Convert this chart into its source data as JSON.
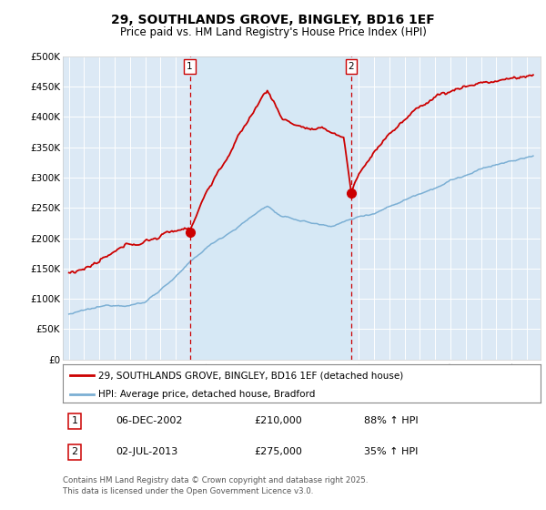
{
  "title": "29, SOUTHLANDS GROVE, BINGLEY, BD16 1EF",
  "subtitle": "Price paid vs. HM Land Registry's House Price Index (HPI)",
  "ylim": [
    0,
    500000
  ],
  "yticks": [
    0,
    50000,
    100000,
    150000,
    200000,
    250000,
    300000,
    350000,
    400000,
    450000,
    500000
  ],
  "ytick_labels": [
    "£0",
    "£50K",
    "£100K",
    "£150K",
    "£200K",
    "£250K",
    "£300K",
    "£350K",
    "£400K",
    "£450K",
    "£500K"
  ],
  "hpi_color": "#7bafd4",
  "price_color": "#cc0000",
  "vline_color": "#cc0000",
  "shade_color": "#d6e8f5",
  "plot_bg_color": "#dce9f5",
  "legend_label_price": "29, SOUTHLANDS GROVE, BINGLEY, BD16 1EF (detached house)",
  "legend_label_hpi": "HPI: Average price, detached house, Bradford",
  "sale1_date": "06-DEC-2002",
  "sale1_price": 210000,
  "sale1_hpi": "88% ↑ HPI",
  "sale2_date": "02-JUL-2013",
  "sale2_price": 275000,
  "sale2_hpi": "35% ↑ HPI",
  "footer": "Contains HM Land Registry data © Crown copyright and database right 2025.\nThis data is licensed under the Open Government Licence v3.0.",
  "sale1_x": 2002.92,
  "sale2_x": 2013.5,
  "marker1_y": 210000,
  "marker2_y": 275000,
  "xlim_left": 1994.6,
  "xlim_right": 2025.9
}
